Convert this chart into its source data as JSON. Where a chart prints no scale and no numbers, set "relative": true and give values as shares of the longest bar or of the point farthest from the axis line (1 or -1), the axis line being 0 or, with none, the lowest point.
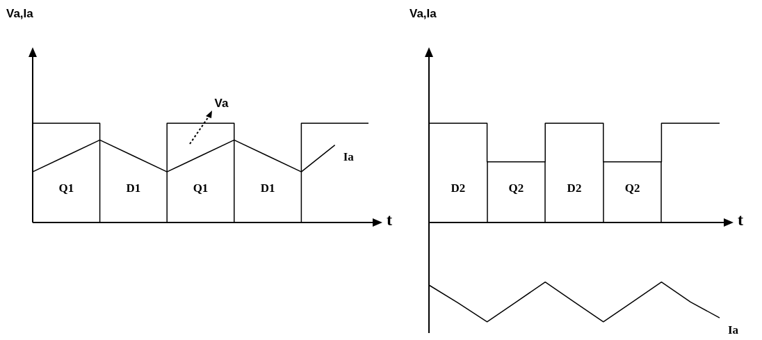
{
  "chart_data": [
    {
      "type": "line",
      "relative": true,
      "ylabel": "Va,Ia",
      "xlabel": "t",
      "categories": [
        null,
        null,
        null,
        null,
        null,
        null,
        null,
        null,
        null,
        null,
        null
      ],
      "annotations": [
        "Q1",
        "D1",
        "Q1",
        "D1"
      ],
      "series": [
        {
          "type": "step",
          "name": "Va",
          "color": "#000000",
          "values": [
            1,
            1,
            0,
            0,
            1,
            1,
            0,
            0,
            1,
            1,
            1
          ]
        },
        {
          "type": "line",
          "name": "Ia",
          "color": "#000000",
          "values": [
            0.51,
            0.67,
            0.83,
            0.67,
            0.51,
            0.67,
            0.83,
            0.67,
            0.51,
            0.78,
            null
          ]
        }
      ]
    },
    {
      "type": "line",
      "relative": true,
      "ylabel": "Va,Ia",
      "xlabel": "t",
      "categories": [
        null,
        null,
        null,
        null,
        null,
        null,
        null,
        null,
        null,
        null,
        null
      ],
      "annotations": [
        "D2",
        "Q2",
        "D2",
        "Q2"
      ],
      "series": [
        {
          "type": "step",
          "color": "#000000",
          "values": [
            1,
            1,
            0.61,
            0.61,
            1,
            1,
            0.61,
            0.61,
            1,
            1,
            1
          ]
        },
        {
          "type": "line",
          "name": "Ia",
          "color": "#000000",
          "values": [
            -0.63,
            -0.81,
            -1,
            -0.8,
            -0.6,
            -0.8,
            -1,
            -0.8,
            -0.6,
            -0.8,
            -0.96
          ]
        }
      ]
    }
  ]
}
